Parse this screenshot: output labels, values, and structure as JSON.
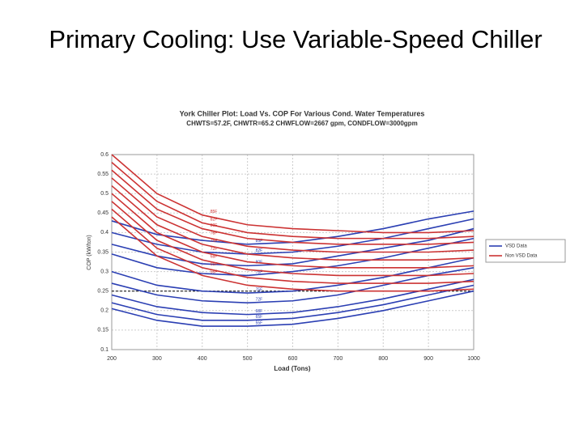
{
  "slide_title": "Primary Cooling: Use Variable-Speed Chiller",
  "chart_data": {
    "type": "line",
    "title": "York Chiller Plot: Load Vs. COP For Various Cond. Water Temperatures",
    "subtitle": "CHWTS=57.2F, CHWTR=65.2 CHWFLOW=2667 gpm, CONDFLOW=3000gpm",
    "x_label": "Load (Tons)",
    "y_label": "COP (kW/ton)",
    "x": [
      200,
      300,
      400,
      500,
      600,
      700,
      800,
      900,
      1000
    ],
    "xlim": [
      200,
      1000
    ],
    "xticks": [
      200,
      300,
      400,
      500,
      600,
      700,
      800,
      900,
      1000
    ],
    "ylim": [
      0.1,
      0.6
    ],
    "yticks": [
      0.1,
      0.15,
      0.2,
      0.25,
      0.3,
      0.35,
      0.4,
      0.45,
      0.5,
      0.55,
      0.6
    ],
    "grid": true,
    "reference_line": 0.25,
    "legend_position": "right",
    "series": [
      {
        "name": "VSD Data",
        "color": "#2b3fb3",
        "curves": [
          {
            "label": "55F",
            "values": [
              0.205,
              0.175,
              0.16,
              0.16,
              0.165,
              0.18,
              0.2,
              0.225,
              0.25
            ]
          },
          {
            "label": "65F",
            "values": [
              0.22,
              0.19,
              0.175,
              0.175,
              0.18,
              0.195,
              0.215,
              0.24,
              0.265
            ]
          },
          {
            "label": "68F",
            "values": [
              0.24,
              0.21,
              0.195,
              0.19,
              0.195,
              0.21,
              0.23,
              0.255,
              0.28
            ]
          },
          {
            "label": "72F",
            "values": [
              0.27,
              0.24,
              0.225,
              0.22,
              0.225,
              0.24,
              0.265,
              0.29,
              0.31
            ]
          },
          {
            "label": "75F",
            "values": [
              0.3,
              0.265,
              0.25,
              0.245,
              0.25,
              0.265,
              0.285,
              0.31,
              0.335
            ]
          },
          {
            "label": "78F",
            "values": [
              0.345,
              0.31,
              0.295,
              0.29,
              0.3,
              0.315,
              0.335,
              0.36,
              0.385
            ]
          },
          {
            "label": "80F",
            "values": [
              0.37,
              0.34,
              0.32,
              0.315,
              0.32,
              0.34,
              0.36,
              0.38,
              0.41
            ]
          },
          {
            "label": "82F",
            "values": [
              0.4,
              0.37,
              0.35,
              0.345,
              0.35,
              0.365,
              0.385,
              0.41,
              0.435
            ]
          },
          {
            "label": "85F",
            "values": [
              0.43,
              0.395,
              0.38,
              0.37,
              0.375,
              0.39,
              0.41,
              0.435,
              0.455
            ]
          }
        ]
      },
      {
        "name": "Non VSD Data",
        "color": "#cc3333",
        "curves": [
          {
            "label": "85F",
            "values": [
              0.6,
              0.5,
              0.445,
              0.42,
              0.41,
              0.405,
              0.4,
              0.4,
              0.405
            ]
          },
          {
            "label": "82F",
            "values": [
              0.58,
              0.48,
              0.425,
              0.4,
              0.39,
              0.385,
              0.385,
              0.385,
              0.39
            ]
          },
          {
            "label": "80F",
            "values": [
              0.56,
              0.46,
              0.41,
              0.385,
              0.375,
              0.37,
              0.37,
              0.37,
              0.375
            ]
          },
          {
            "label": "78F",
            "values": [
              0.54,
              0.44,
              0.39,
              0.365,
              0.355,
              0.35,
              0.35,
              0.35,
              0.355
            ]
          },
          {
            "label": "75F",
            "values": [
              0.52,
              0.42,
              0.37,
              0.345,
              0.335,
              0.33,
              0.33,
              0.33,
              0.335
            ]
          },
          {
            "label": "72F",
            "values": [
              0.5,
              0.4,
              0.35,
              0.325,
              0.315,
              0.31,
              0.31,
              0.31,
              0.315
            ]
          },
          {
            "label": "68F",
            "values": [
              0.48,
              0.38,
              0.33,
              0.305,
              0.295,
              0.29,
              0.29,
              0.29,
              0.295
            ]
          },
          {
            "label": "65F",
            "values": [
              0.46,
              0.36,
              0.31,
              0.285,
              0.275,
              0.27,
              0.27,
              0.27,
              0.275
            ]
          },
          {
            "label": "55F",
            "values": [
              0.44,
              0.34,
              0.29,
              0.265,
              0.255,
              0.25,
              0.25,
              0.25,
              0.255
            ]
          }
        ]
      }
    ]
  }
}
